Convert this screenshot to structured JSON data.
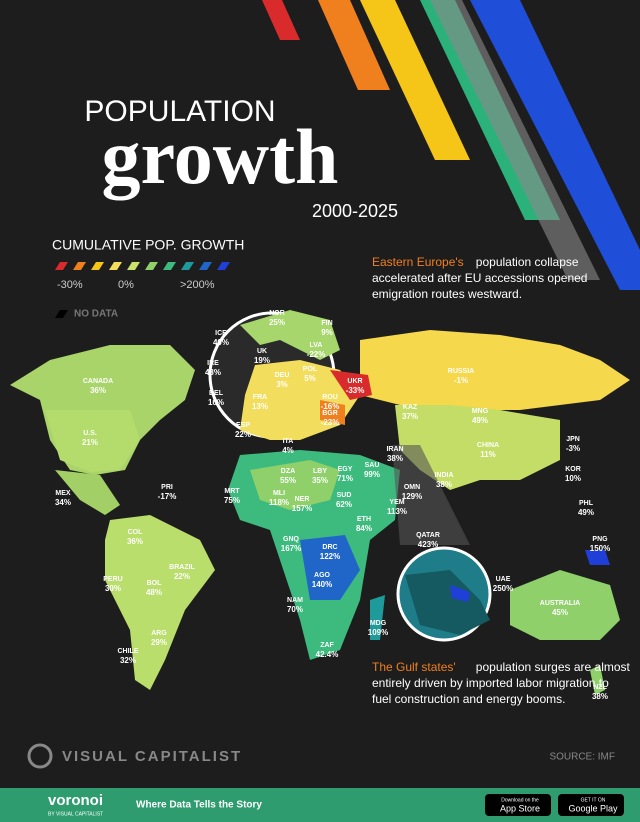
{
  "header": {
    "title_top": "POPULATION",
    "title_main": "growth",
    "years": "2000-2025"
  },
  "legend": {
    "title": "CUMULATIVE POP. GROWTH",
    "low": "-30%",
    "mid": "0%",
    "high": ">200%",
    "no_data": "NO DATA"
  },
  "annotations": [
    {
      "highlight": "Eastern Europe's",
      "text": " population collapse accelerated after EU accessions opened emigration routes westward."
    },
    {
      "highlight": "The Gulf states'",
      "text": " population surges are almost entirely driven by imported labor migration to fuel construction and energy booms."
    }
  ],
  "countries": [
    {
      "name": "NOR",
      "value": "25%"
    },
    {
      "name": "ICE",
      "value": "40%"
    },
    {
      "name": "FIN",
      "value": "9%"
    },
    {
      "name": "UK",
      "value": "19%"
    },
    {
      "name": "IRE",
      "value": "43%"
    },
    {
      "name": "LVA",
      "value": "-22%"
    },
    {
      "name": "POL",
      "value": "5%"
    },
    {
      "name": "DEU",
      "value": "3%"
    },
    {
      "name": "BEL",
      "value": "16%"
    },
    {
      "name": "FRA",
      "value": "13%"
    },
    {
      "name": "ESP",
      "value": "22%"
    },
    {
      "name": "ITA",
      "value": "4%"
    },
    {
      "name": "UKR",
      "value": "-33%"
    },
    {
      "name": "ROU",
      "value": "-16%"
    },
    {
      "name": "BGR",
      "value": "-23%"
    },
    {
      "name": "RUSSIA",
      "value": "-1%"
    },
    {
      "name": "CANADA",
      "value": "36%"
    },
    {
      "name": "U.S.",
      "value": "21%"
    },
    {
      "name": "MEX",
      "value": "34%"
    },
    {
      "name": "PRI",
      "value": "-17%"
    },
    {
      "name": "KAZ",
      "value": "37%"
    },
    {
      "name": "MNG",
      "value": "49%"
    },
    {
      "name": "CHINA",
      "value": "11%"
    },
    {
      "name": "JPN",
      "value": "-3%"
    },
    {
      "name": "KOR",
      "value": "10%"
    },
    {
      "name": "IRAN",
      "value": "38%"
    },
    {
      "name": "INDIA",
      "value": "38%"
    },
    {
      "name": "PHL",
      "value": "49%"
    },
    {
      "name": "SAU",
      "value": "99%"
    },
    {
      "name": "OMN",
      "value": "129%"
    },
    {
      "name": "YEM",
      "value": "113%"
    },
    {
      "name": "EGY",
      "value": "71%"
    },
    {
      "name": "LBY",
      "value": "35%"
    },
    {
      "name": "DZA",
      "value": "55%"
    },
    {
      "name": "MRT",
      "value": "75%"
    },
    {
      "name": "MLI",
      "value": "118%"
    },
    {
      "name": "NER",
      "value": "157%"
    },
    {
      "name": "SUD",
      "value": "62%"
    },
    {
      "name": "ETH",
      "value": "84%"
    },
    {
      "name": "GNQ",
      "value": "167%"
    },
    {
      "name": "DRC",
      "value": "122%"
    },
    {
      "name": "AGO",
      "value": "140%"
    },
    {
      "name": "NAM",
      "value": "70%"
    },
    {
      "name": "ZAF",
      "value": "42.4%"
    },
    {
      "name": "MDG",
      "value": "109%"
    },
    {
      "name": "COL",
      "value": "36%"
    },
    {
      "name": "BRAZIL",
      "value": "22%"
    },
    {
      "name": "PERU",
      "value": "30%"
    },
    {
      "name": "BOL",
      "value": "48%"
    },
    {
      "name": "ARG",
      "value": "29%"
    },
    {
      "name": "CHILE",
      "value": "32%"
    },
    {
      "name": "PNG",
      "value": "150%"
    },
    {
      "name": "QATAR",
      "value": "423%"
    },
    {
      "name": "UAE",
      "value": "250%"
    },
    {
      "name": "AUSTRALIA",
      "value": "45%"
    },
    {
      "name": "NZL",
      "value": "38%"
    }
  ],
  "footer": {
    "brand": "VISUAL CAPITALIST",
    "source": "SOURCE: IMF",
    "voronoi": "voronoi",
    "by": "BY VISUAL CAPITALIST",
    "tagline": "Where Data Tells the Story",
    "appstore_small": "Download on the",
    "appstore": "App Store",
    "gplay_small": "GET IT ON",
    "gplay": "Google Play"
  }
}
